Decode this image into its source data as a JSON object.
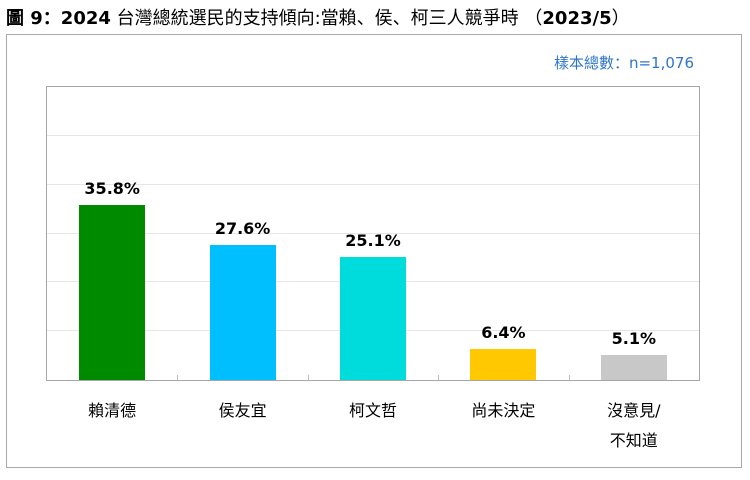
{
  "header": {
    "title_prefix": "圖 9：2024",
    "title_main": " 台灣總統選民的支持傾向:當賴、侯、柯三人競爭時 （",
    "title_date": "2023/5",
    "title_suffix": "）"
  },
  "sample_size": "樣本總數：n=1,076",
  "colors": {
    "lai": "#008a00",
    "hou": "#00bfff",
    "ko": "#00dcdc",
    "undecided": "#ffc800",
    "no_opinion": "#c8c8c8",
    "sample_text": "#2e75c9"
  },
  "bars": [
    {
      "label": "賴清德",
      "value_label": "35.8%"
    },
    {
      "label": "侯友宜",
      "value_label": "27.6%"
    },
    {
      "label": "柯文哲",
      "value_label": "25.1%"
    },
    {
      "label": "尚未決定",
      "value_label": "6.4%"
    },
    {
      "label": "沒意見/\n不知道",
      "value_label": "5.1%"
    }
  ],
  "chart_data": {
    "type": "bar",
    "title": "圖 9：2024 台灣總統選民的支持傾向:當賴、侯、柯三人競爭時 （2023/5）",
    "subtitle": "樣本總數：n=1,076",
    "categories": [
      "賴清德",
      "侯友宜",
      "柯文哲",
      "尚未決定",
      "沒意見/不知道"
    ],
    "values": [
      35.8,
      27.6,
      25.1,
      6.4,
      5.1
    ],
    "unit": "%",
    "colors": [
      "#008a00",
      "#00bfff",
      "#00dcdc",
      "#ffc800",
      "#c8c8c8"
    ],
    "xlabel": "",
    "ylabel": "",
    "ylim": [
      0,
      60
    ],
    "grid": true,
    "gridline_step": 10,
    "y_tick_labels_shown": false,
    "legend": "none"
  }
}
